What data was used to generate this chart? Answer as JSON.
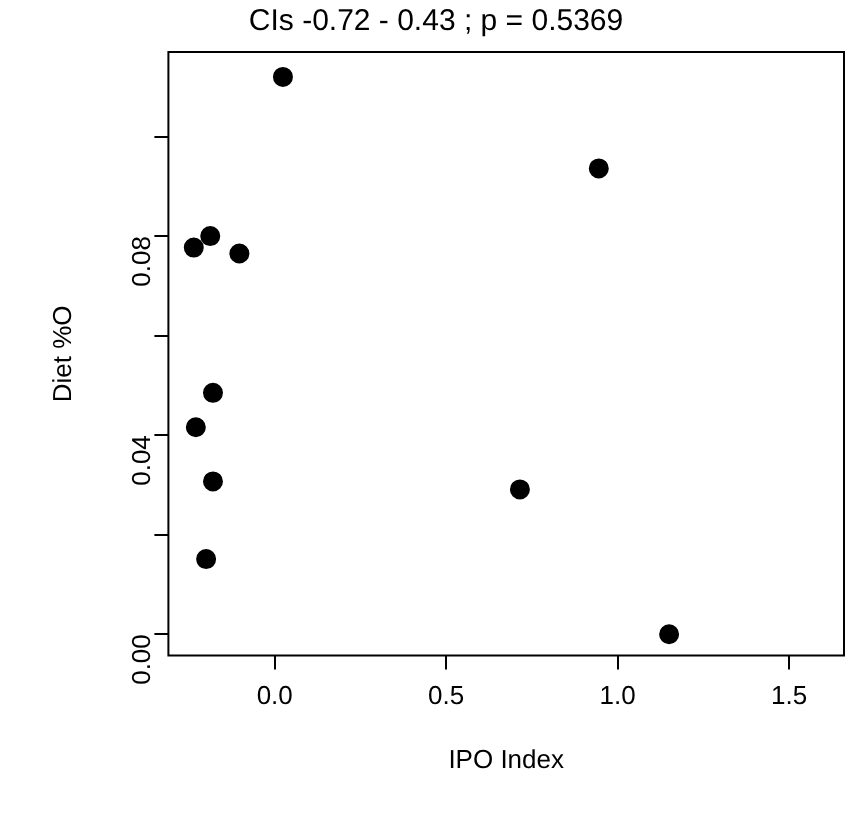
{
  "chart_data": {
    "type": "scatter",
    "title": "CIs -0.72 - 0.43 ; p = 0.5369",
    "xlabel": "IPO Index",
    "ylabel": "Diet %O",
    "x": [
      0.024,
      0.945,
      -0.236,
      -0.188,
      -0.103,
      -0.18,
      -0.23,
      -0.18,
      -0.2,
      0.715,
      1.15
    ],
    "series": [
      {
        "color": "#000000",
        "values": [
          0.112,
          0.0936,
          0.0777,
          0.08,
          0.0765,
          0.0485,
          0.0416,
          0.0307,
          0.0151,
          0.0291,
          0.0
        ]
      }
    ],
    "xlim": [
      -0.31,
      1.66
    ],
    "xticks": [
      {
        "value": 0,
        "label": "0.0"
      },
      0.5,
      {
        "value": 1,
        "label": "1.0"
      },
      1.5
    ],
    "ylim": [
      -0.0043,
      0.117
    ],
    "yticks": [
      {
        "value": 0,
        "label": "0.00"
      },
      {
        "value": 0.02,
        "label": null
      },
      0.04,
      {
        "value": 0.06,
        "label": null
      },
      0.08,
      {
        "value": 0.1,
        "label": null
      }
    ],
    "marker": "circle",
    "grid": false,
    "legend": false
  }
}
